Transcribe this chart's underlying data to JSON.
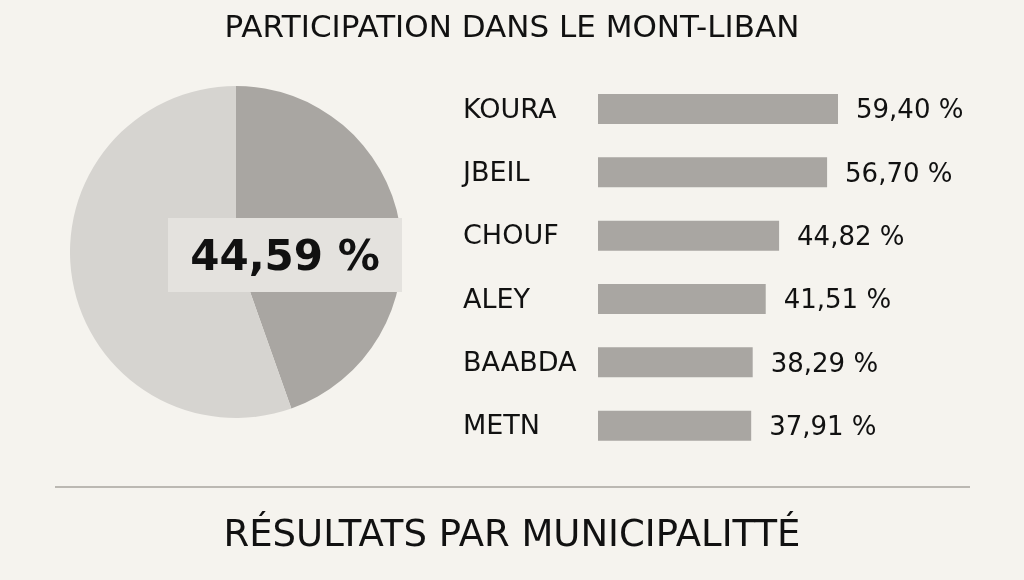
{
  "chart_data": [
    {
      "type": "pie",
      "title": "PARTICIPATION DANS LE MONT-LIBAN",
      "categories": [
        null,
        null
      ],
      "values": [
        44.59,
        55.41
      ],
      "colors": [
        "#a9a6a2",
        "#d6d4d0"
      ],
      "value_labels": [
        "44,59 %",
        null
      ]
    },
    {
      "type": "bar",
      "orientation": "horizontal",
      "categories": [
        "KOURA",
        "JBEIL",
        "CHOUF",
        "ALEY",
        "BAABDA",
        "METN"
      ],
      "values": [
        59.4,
        56.7,
        44.82,
        41.51,
        38.29,
        37.91
      ],
      "color": "#a9a6a2",
      "value_labels": [
        "59,40 %",
        "56,70 %",
        "44,82 %",
        "41,51 %",
        "38,29 %",
        "37,91 %"
      ],
      "annotations": [
        "RÉSULTATS PAR MUNICIPALITTÉ"
      ]
    }
  ]
}
